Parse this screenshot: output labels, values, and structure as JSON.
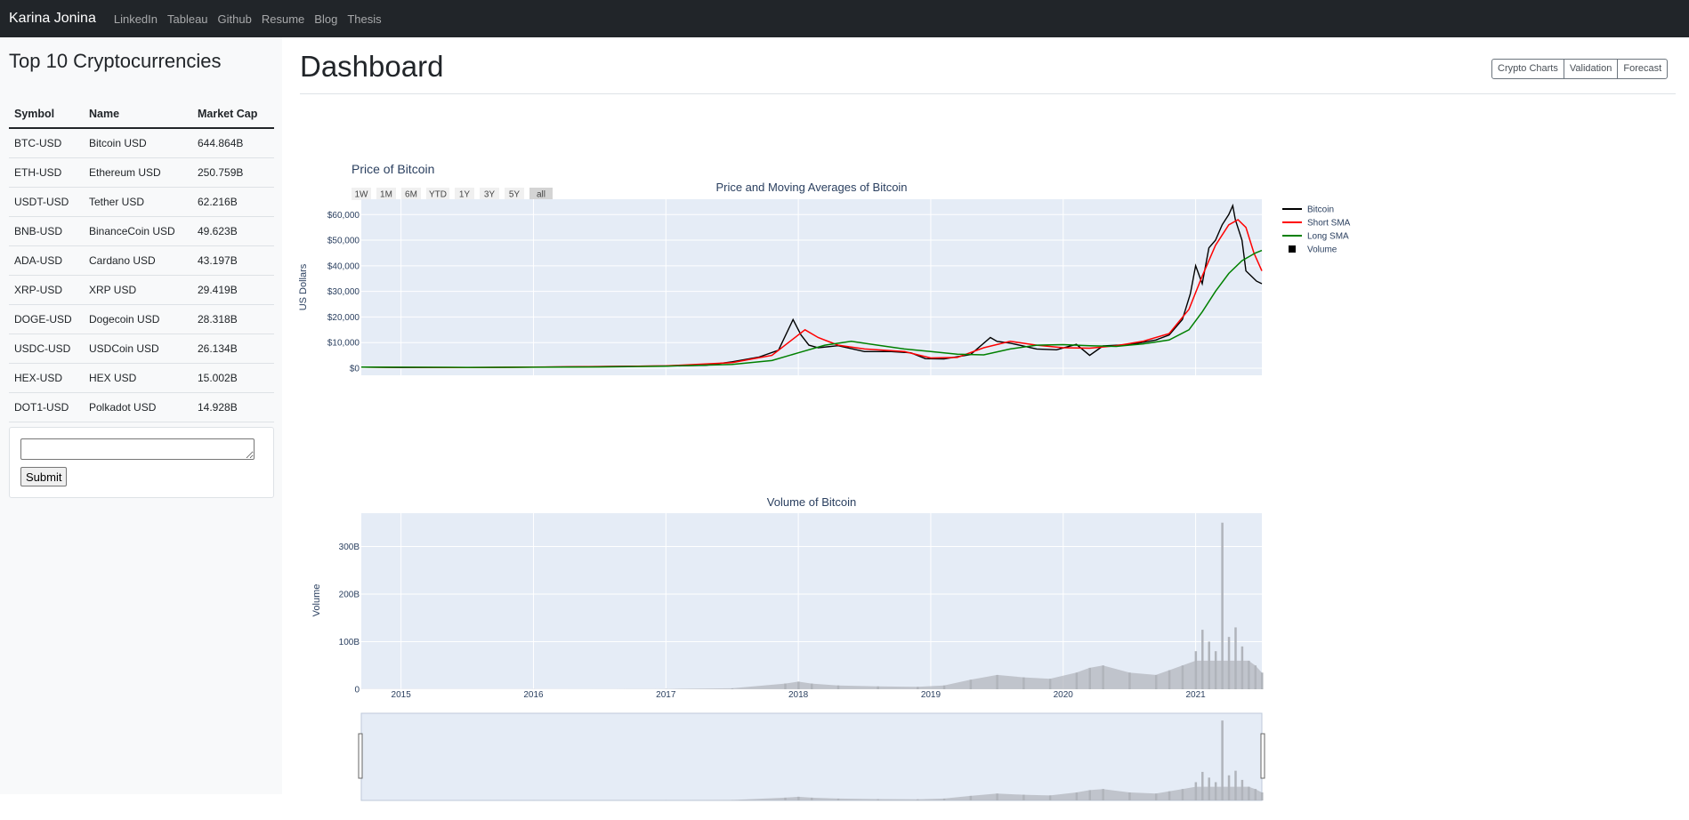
{
  "navbar": {
    "brand": "Karina Jonina",
    "links": [
      "LinkedIn",
      "Tableau",
      "Github",
      "Resume",
      "Blog",
      "Thesis"
    ]
  },
  "sidebar": {
    "title": "Top 10 Cryptocurrencies",
    "table": {
      "headers": [
        "Symbol",
        "Name",
        "Market Cap"
      ],
      "rows": [
        [
          "BTC-USD",
          "Bitcoin USD",
          "644.864B"
        ],
        [
          "ETH-USD",
          "Ethereum USD",
          "250.759B"
        ],
        [
          "USDT-USD",
          "Tether USD",
          "62.216B"
        ],
        [
          "BNB-USD",
          "BinanceCoin USD",
          "49.623B"
        ],
        [
          "ADA-USD",
          "Cardano USD",
          "43.197B"
        ],
        [
          "XRP-USD",
          "XRP USD",
          "29.419B"
        ],
        [
          "DOGE-USD",
          "Dogecoin USD",
          "28.318B"
        ],
        [
          "USDC-USD",
          "USDCoin USD",
          "26.134B"
        ],
        [
          "HEX-USD",
          "HEX USD",
          "15.002B"
        ],
        [
          "DOT1-USD",
          "Polkadot USD",
          "14.928B"
        ]
      ]
    },
    "form": {
      "textarea_value": "",
      "submit_label": "Submit"
    }
  },
  "main": {
    "title": "Dashboard",
    "buttons": [
      "Crypto Charts",
      "Validation",
      "Forecast"
    ]
  },
  "colors": {
    "navbar": "#212529",
    "plot_bg": "#e5ecf6",
    "bitcoin": "#000000",
    "short_sma": "#ff0000",
    "long_sma": "#008000",
    "volume": "#b0b4bb"
  },
  "chart_data": [
    {
      "type": "line",
      "figure_title": "Price of Bitcoin",
      "title": "Price and Moving Averages of Bitcoin",
      "ylabel": "US Dollars",
      "xlabel": "",
      "range_buttons": [
        "1W",
        "1M",
        "6M",
        "YTD",
        "1Y",
        "3Y",
        "5Y",
        "all"
      ],
      "y_ticks": [
        "$0",
        "$10,000",
        "$20,000",
        "$30,000",
        "$40,000",
        "$50,000",
        "$60,000"
      ],
      "ylim": [
        0,
        66000
      ],
      "xlim": [
        2014.7,
        2021.5
      ],
      "legend": [
        "Bitcoin",
        "Short SMA",
        "Long SMA",
        "Volume"
      ],
      "legend_position": "right",
      "series": [
        {
          "name": "Bitcoin",
          "color": "#000000",
          "x": [
            2014.7,
            2015.0,
            2015.5,
            2016.0,
            2016.5,
            2017.0,
            2017.3,
            2017.5,
            2017.7,
            2017.85,
            2017.96,
            2018.02,
            2018.08,
            2018.15,
            2018.3,
            2018.5,
            2018.7,
            2018.85,
            2018.96,
            2019.1,
            2019.3,
            2019.45,
            2019.5,
            2019.6,
            2019.8,
            2019.95,
            2020.1,
            2020.2,
            2020.3,
            2020.5,
            2020.7,
            2020.8,
            2020.9,
            2020.96,
            2021.0,
            2021.05,
            2021.1,
            2021.15,
            2021.2,
            2021.25,
            2021.28,
            2021.3,
            2021.35,
            2021.38,
            2021.42,
            2021.46,
            2021.5
          ],
          "values": [
            400,
            250,
            250,
            400,
            650,
            900,
            1100,
            2500,
            4300,
            7000,
            19000,
            13000,
            9000,
            8000,
            8800,
            6500,
            6500,
            6000,
            3700,
            3600,
            5300,
            12000,
            10500,
            9800,
            7500,
            7200,
            9300,
            5000,
            8700,
            9200,
            11000,
            13000,
            19000,
            29000,
            40000,
            33000,
            47000,
            50000,
            56000,
            60000,
            63500,
            58000,
            50000,
            38000,
            36000,
            34000,
            33000
          ]
        },
        {
          "name": "Short SMA",
          "color": "#ff0000",
          "x": [
            2014.7,
            2015.5,
            2016.5,
            2017.0,
            2017.5,
            2017.8,
            2017.95,
            2018.05,
            2018.15,
            2018.3,
            2018.5,
            2018.8,
            2019.0,
            2019.2,
            2019.4,
            2019.6,
            2019.8,
            2020.0,
            2020.2,
            2020.4,
            2020.6,
            2020.8,
            2020.95,
            2021.05,
            2021.15,
            2021.25,
            2021.32,
            2021.38,
            2021.44,
            2021.5
          ],
          "values": [
            400,
            250,
            600,
            900,
            2200,
            5000,
            11000,
            15000,
            12000,
            9000,
            7500,
            6500,
            4000,
            4200,
            8000,
            10500,
            9000,
            8000,
            7800,
            8800,
            10500,
            13500,
            23000,
            36000,
            48000,
            56000,
            58000,
            55000,
            45000,
            38000
          ]
        },
        {
          "name": "Long SMA",
          "color": "#008000",
          "x": [
            2014.7,
            2015.5,
            2016.5,
            2017.0,
            2017.5,
            2017.8,
            2018.0,
            2018.2,
            2018.4,
            2018.6,
            2018.8,
            2019.0,
            2019.2,
            2019.4,
            2019.6,
            2019.8,
            2020.0,
            2020.2,
            2020.4,
            2020.6,
            2020.8,
            2020.95,
            2021.05,
            2021.15,
            2021.25,
            2021.35,
            2021.45,
            2021.5
          ],
          "values": [
            400,
            300,
            500,
            800,
            1500,
            3000,
            6000,
            9000,
            10500,
            9000,
            7500,
            6500,
            5500,
            5200,
            7500,
            9000,
            9200,
            8800,
            8500,
            9500,
            11000,
            15000,
            22000,
            30000,
            37000,
            42000,
            45000,
            46000
          ]
        }
      ]
    },
    {
      "type": "bar",
      "title": "Volume of Bitcoin",
      "ylabel": "Volume",
      "xlabel": "",
      "y_ticks": [
        "0",
        "100B",
        "200B",
        "300B"
      ],
      "x_ticks": [
        "2015",
        "2016",
        "2017",
        "2018",
        "2019",
        "2020",
        "2021"
      ],
      "ylim": [
        0,
        370
      ],
      "xlim": [
        2014.7,
        2021.5
      ],
      "series": [
        {
          "name": "Volume",
          "color": "#b0b4bb",
          "x": [
            2014.7,
            2016.0,
            2017.0,
            2017.5,
            2017.9,
            2018.0,
            2018.1,
            2018.3,
            2018.6,
            2018.9,
            2019.1,
            2019.3,
            2019.5,
            2019.7,
            2019.9,
            2020.1,
            2020.2,
            2020.3,
            2020.5,
            2020.7,
            2020.8,
            2020.9,
            2021.0,
            2021.05,
            2021.1,
            2021.15,
            2021.2,
            2021.25,
            2021.3,
            2021.35,
            2021.4,
            2021.45,
            2021.5
          ],
          "values": [
            0.1,
            0.2,
            0.5,
            2,
            12,
            16,
            12,
            8,
            6,
            5,
            8,
            20,
            30,
            25,
            22,
            35,
            45,
            50,
            35,
            30,
            40,
            50,
            80,
            125,
            100,
            80,
            350,
            110,
            130,
            90,
            60,
            50,
            35
          ]
        }
      ]
    }
  ]
}
